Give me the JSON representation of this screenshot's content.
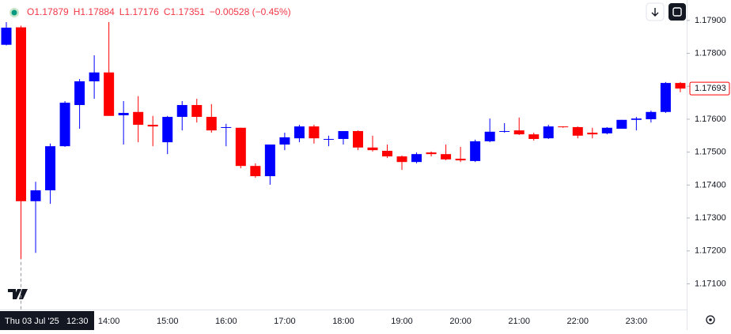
{
  "chart_data": {
    "type": "candlestick",
    "header": [
      "O1.17879",
      "H1.17884",
      "L1.17176",
      "C1.17351",
      "−0.00528 (−0.45%)"
    ],
    "categories": [
      null,
      null,
      null,
      null,
      null,
      null,
      null,
      "14:00",
      null,
      null,
      null,
      "15:00",
      null,
      null,
      null,
      "16:00",
      null,
      null,
      null,
      "17:00",
      null,
      null,
      null,
      "18:00",
      null,
      null,
      null,
      "19:00",
      null,
      null,
      null,
      "20:00",
      null,
      null,
      null,
      "21:00",
      null,
      null,
      null,
      "22:00",
      null,
      null,
      null,
      "23:00",
      null,
      null,
      null
    ],
    "open": [
      1.17826,
      1.17879,
      1.17351,
      1.17384,
      1.17518,
      1.17643,
      1.17715,
      1.17742,
      1.17612,
      1.17622,
      1.17583,
      1.1753,
      1.17607,
      1.17643,
      1.17607,
      1.17574,
      1.17574,
      1.17458,
      1.17427,
      1.17523,
      1.17542,
      1.17578,
      1.17538,
      1.1754,
      1.17564,
      1.17514,
      1.17504,
      1.17487,
      1.1747,
      1.17499,
      1.17494,
      1.1748,
      1.17473,
      1.17533,
      1.17562,
      1.17566,
      1.17554,
      1.17542,
      1.17578,
      1.17576,
      1.17559,
      1.17557,
      1.17571,
      1.17598,
      1.176,
      1.17622,
      1.1771
    ],
    "high": [
      1.17895,
      1.17884,
      1.1741,
      1.17526,
      1.17655,
      1.17722,
      1.17794,
      1.17895,
      1.17655,
      1.1767,
      1.1761,
      1.1761,
      1.17655,
      1.17662,
      1.17646,
      1.17586,
      1.17574,
      1.17466,
      1.17523,
      1.17559,
      1.17583,
      1.17583,
      1.1755,
      1.17564,
      1.17566,
      1.1755,
      1.17523,
      1.1749,
      1.17499,
      1.17502,
      1.17523,
      1.17516,
      1.17538,
      1.17602,
      1.17588,
      1.17605,
      1.17559,
      1.17583,
      1.17578,
      1.17578,
      1.17574,
      1.17576,
      1.17598,
      1.17607,
      1.17626,
      1.17713,
      1.17713
    ],
    "low": [
      1.17824,
      1.17176,
      1.17194,
      1.17343,
      1.17516,
      1.17571,
      1.17662,
      1.1761,
      1.17523,
      1.1753,
      1.17518,
      1.17494,
      1.17566,
      1.1759,
      1.17559,
      1.17518,
      1.17451,
      1.17422,
      1.17401,
      1.17506,
      1.1753,
      1.17526,
      1.17518,
      1.17523,
      1.17506,
      1.17502,
      1.17482,
      1.17446,
      1.17466,
      1.17487,
      1.17475,
      1.1747,
      1.1747,
      1.1753,
      1.17559,
      1.17552,
      1.17535,
      1.1754,
      1.17574,
      1.17542,
      1.17542,
      1.17554,
      1.17571,
      1.17566,
      1.1759,
      1.17619,
      1.17682
    ],
    "close": [
      1.17878,
      1.17351,
      1.17384,
      1.17518,
      1.1765,
      1.17715,
      1.17742,
      1.1761,
      1.17619,
      1.17583,
      1.17578,
      1.17607,
      1.17643,
      1.17607,
      1.17566,
      1.17576,
      1.17458,
      1.17427,
      1.17523,
      1.17545,
      1.17578,
      1.17542,
      1.1754,
      1.17564,
      1.17514,
      1.17506,
      1.17487,
      1.1747,
      1.17494,
      1.17494,
      1.17478,
      1.17475,
      1.17533,
      1.17562,
      1.17564,
      1.17554,
      1.1754,
      1.17578,
      1.17576,
      1.1755,
      1.17554,
      1.17574,
      1.17598,
      1.17602,
      1.17622,
      1.1771,
      1.17693
    ],
    "up_color": "#0000ff",
    "down_color": "#ff0000",
    "ylim": [
      1.17022,
      1.17962
    ],
    "yticks": [
      {
        "value": 1.171,
        "label": "1.17100"
      },
      {
        "value": 1.172,
        "label": "1.17200"
      },
      {
        "value": 1.173,
        "label": "1.17300"
      },
      {
        "value": 1.174,
        "label": "1.17400"
      },
      {
        "value": 1.175,
        "label": "1.17500"
      },
      {
        "value": 1.176,
        "label": "1.17600"
      },
      {
        "value": 1.177,
        "label": "1.17700"
      },
      {
        "value": 1.178,
        "label": "1.17800"
      },
      {
        "value": 1.179,
        "label": "1.17900"
      }
    ],
    "last_price": {
      "value": 1.17693,
      "label": "1.17693"
    },
    "crosshair": {
      "date": "Thu 03 Jul '25",
      "time": "12:30"
    }
  }
}
